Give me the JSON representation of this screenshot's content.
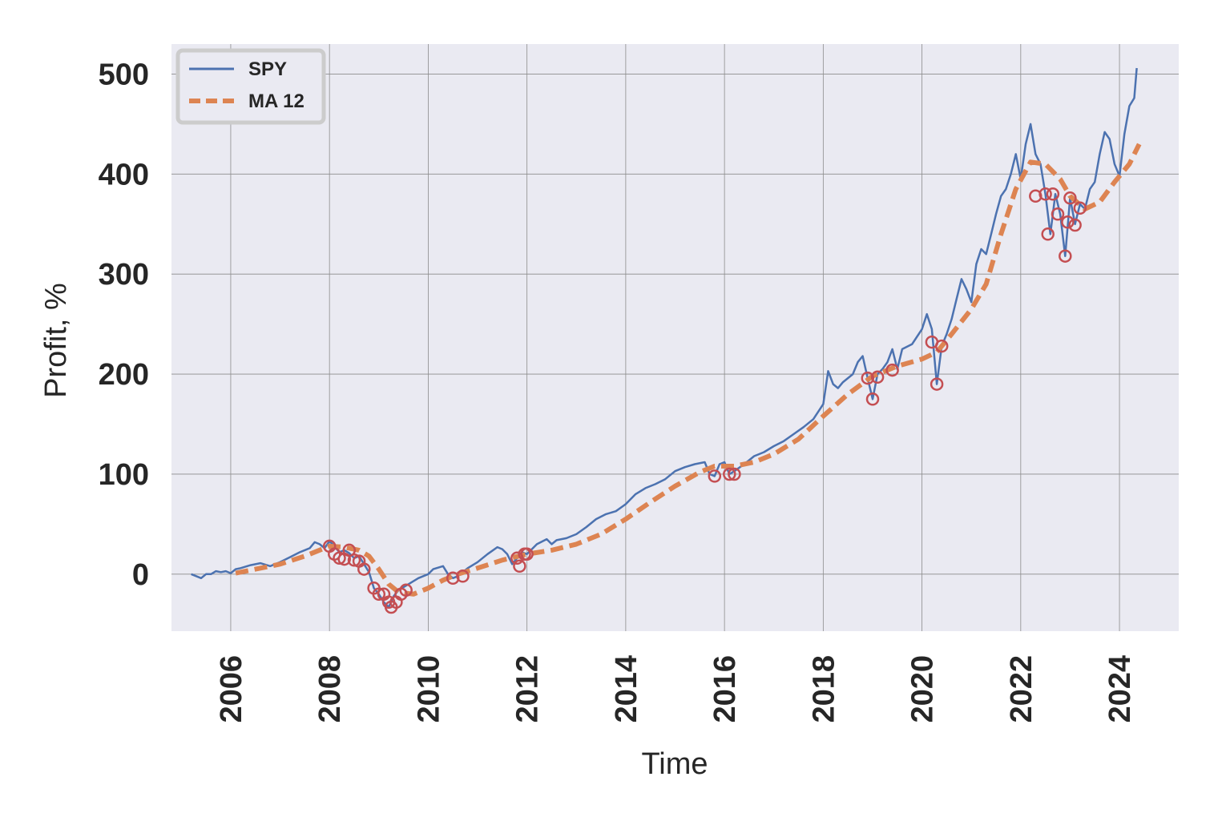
{
  "chart_data": {
    "type": "line",
    "xlabel": "Time",
    "ylabel": "Profit, %",
    "xlim": [
      2004.8,
      2025.2
    ],
    "ylim": [
      -57,
      530
    ],
    "x_ticks": [
      2006,
      2008,
      2010,
      2012,
      2014,
      2016,
      2018,
      2020,
      2022,
      2024
    ],
    "x_tick_labels": [
      "2006",
      "2008",
      "2010",
      "2012",
      "2014",
      "2016",
      "2018",
      "2020",
      "2022",
      "2024"
    ],
    "y_ticks": [
      0,
      100,
      200,
      300,
      400,
      500
    ],
    "y_tick_labels": [
      "0",
      "100",
      "200",
      "300",
      "400",
      "500"
    ],
    "grid": true,
    "legend_position": "top-left",
    "series": [
      {
        "name": "SPY",
        "color": "#4c72b0",
        "style": "solid",
        "points": [
          [
            2005.2,
            0
          ],
          [
            2005.3,
            -2
          ],
          [
            2005.4,
            -4
          ],
          [
            2005.5,
            0
          ],
          [
            2005.6,
            0
          ],
          [
            2005.7,
            3
          ],
          [
            2005.8,
            2
          ],
          [
            2005.9,
            3
          ],
          [
            2006.0,
            1
          ],
          [
            2006.1,
            5
          ],
          [
            2006.2,
            6
          ],
          [
            2006.4,
            9
          ],
          [
            2006.6,
            11
          ],
          [
            2006.8,
            8
          ],
          [
            2007.0,
            12
          ],
          [
            2007.2,
            17
          ],
          [
            2007.4,
            22
          ],
          [
            2007.6,
            26
          ],
          [
            2007.7,
            32
          ],
          [
            2007.8,
            30
          ],
          [
            2007.9,
            26
          ],
          [
            2008.0,
            33
          ],
          [
            2008.1,
            28
          ],
          [
            2008.2,
            22
          ],
          [
            2008.3,
            24
          ],
          [
            2008.4,
            21
          ],
          [
            2008.5,
            16
          ],
          [
            2008.6,
            18
          ],
          [
            2008.7,
            10
          ],
          [
            2008.8,
            2
          ],
          [
            2008.9,
            -14
          ],
          [
            2009.0,
            -20
          ],
          [
            2009.1,
            -28
          ],
          [
            2009.2,
            -33
          ],
          [
            2009.3,
            -22
          ],
          [
            2009.4,
            -16
          ],
          [
            2009.6,
            -10
          ],
          [
            2009.8,
            -4
          ],
          [
            2010.0,
            0
          ],
          [
            2010.1,
            5
          ],
          [
            2010.3,
            8
          ],
          [
            2010.4,
            0
          ],
          [
            2010.5,
            -4
          ],
          [
            2010.6,
            -2
          ],
          [
            2010.8,
            6
          ],
          [
            2011.0,
            12
          ],
          [
            2011.2,
            20
          ],
          [
            2011.4,
            27
          ],
          [
            2011.5,
            25
          ],
          [
            2011.6,
            20
          ],
          [
            2011.7,
            10
          ],
          [
            2011.8,
            16
          ],
          [
            2011.9,
            22
          ],
          [
            2012.0,
            20
          ],
          [
            2012.2,
            30
          ],
          [
            2012.4,
            35
          ],
          [
            2012.5,
            30
          ],
          [
            2012.6,
            34
          ],
          [
            2012.8,
            36
          ],
          [
            2013.0,
            40
          ],
          [
            2013.2,
            47
          ],
          [
            2013.4,
            55
          ],
          [
            2013.6,
            60
          ],
          [
            2013.8,
            63
          ],
          [
            2014.0,
            70
          ],
          [
            2014.2,
            80
          ],
          [
            2014.4,
            86
          ],
          [
            2014.6,
            90
          ],
          [
            2014.8,
            95
          ],
          [
            2015.0,
            103
          ],
          [
            2015.2,
            107
          ],
          [
            2015.4,
            110
          ],
          [
            2015.6,
            112
          ],
          [
            2015.7,
            100
          ],
          [
            2015.8,
            98
          ],
          [
            2015.9,
            110
          ],
          [
            2016.0,
            112
          ],
          [
            2016.1,
            100
          ],
          [
            2016.2,
            103
          ],
          [
            2016.4,
            110
          ],
          [
            2016.6,
            118
          ],
          [
            2016.8,
            122
          ],
          [
            2017.0,
            128
          ],
          [
            2017.2,
            133
          ],
          [
            2017.4,
            140
          ],
          [
            2017.6,
            147
          ],
          [
            2017.8,
            155
          ],
          [
            2018.0,
            170
          ],
          [
            2018.1,
            203
          ],
          [
            2018.2,
            190
          ],
          [
            2018.3,
            186
          ],
          [
            2018.4,
            192
          ],
          [
            2018.6,
            200
          ],
          [
            2018.7,
            212
          ],
          [
            2018.8,
            218
          ],
          [
            2018.9,
            196
          ],
          [
            2019.0,
            175
          ],
          [
            2019.1,
            200
          ],
          [
            2019.2,
            205
          ],
          [
            2019.3,
            212
          ],
          [
            2019.4,
            225
          ],
          [
            2019.5,
            205
          ],
          [
            2019.6,
            225
          ],
          [
            2019.8,
            230
          ],
          [
            2020.0,
            245
          ],
          [
            2020.1,
            260
          ],
          [
            2020.2,
            245
          ],
          [
            2020.3,
            190
          ],
          [
            2020.4,
            228
          ],
          [
            2020.5,
            240
          ],
          [
            2020.6,
            255
          ],
          [
            2020.7,
            275
          ],
          [
            2020.8,
            295
          ],
          [
            2020.9,
            285
          ],
          [
            2021.0,
            272
          ],
          [
            2021.1,
            310
          ],
          [
            2021.2,
            325
          ],
          [
            2021.3,
            320
          ],
          [
            2021.4,
            340
          ],
          [
            2021.5,
            360
          ],
          [
            2021.6,
            378
          ],
          [
            2021.7,
            385
          ],
          [
            2021.8,
            400
          ],
          [
            2021.9,
            420
          ],
          [
            2022.0,
            395
          ],
          [
            2022.1,
            430
          ],
          [
            2022.2,
            450
          ],
          [
            2022.3,
            420
          ],
          [
            2022.4,
            410
          ],
          [
            2022.5,
            380
          ],
          [
            2022.6,
            340
          ],
          [
            2022.7,
            380
          ],
          [
            2022.8,
            360
          ],
          [
            2022.9,
            318
          ],
          [
            2023.0,
            376
          ],
          [
            2023.1,
            350
          ],
          [
            2023.2,
            370
          ],
          [
            2023.3,
            365
          ],
          [
            2023.4,
            385
          ],
          [
            2023.5,
            392
          ],
          [
            2023.6,
            420
          ],
          [
            2023.7,
            442
          ],
          [
            2023.8,
            435
          ],
          [
            2023.9,
            410
          ],
          [
            2024.0,
            398
          ],
          [
            2024.1,
            440
          ],
          [
            2024.2,
            468
          ],
          [
            2024.3,
            476
          ],
          [
            2024.35,
            506
          ]
        ]
      },
      {
        "name": "MA 12",
        "color": "#dd8452",
        "style": "dashed",
        "points": [
          [
            2006.1,
            1
          ],
          [
            2006.5,
            5
          ],
          [
            2007.0,
            10
          ],
          [
            2007.5,
            18
          ],
          [
            2008.0,
            28
          ],
          [
            2008.3,
            27
          ],
          [
            2008.6,
            24
          ],
          [
            2008.8,
            18
          ],
          [
            2009.0,
            5
          ],
          [
            2009.2,
            -10
          ],
          [
            2009.4,
            -18
          ],
          [
            2009.7,
            -20
          ],
          [
            2010.0,
            -14
          ],
          [
            2010.3,
            -6
          ],
          [
            2010.6,
            0
          ],
          [
            2011.0,
            6
          ],
          [
            2011.5,
            14
          ],
          [
            2012.0,
            20
          ],
          [
            2012.5,
            24
          ],
          [
            2013.0,
            30
          ],
          [
            2013.5,
            40
          ],
          [
            2014.0,
            55
          ],
          [
            2014.5,
            72
          ],
          [
            2015.0,
            88
          ],
          [
            2015.5,
            102
          ],
          [
            2015.8,
            108
          ],
          [
            2016.2,
            108
          ],
          [
            2016.6,
            112
          ],
          [
            2017.0,
            120
          ],
          [
            2017.5,
            135
          ],
          [
            2018.0,
            158
          ],
          [
            2018.5,
            180
          ],
          [
            2019.0,
            198
          ],
          [
            2019.5,
            208
          ],
          [
            2020.0,
            215
          ],
          [
            2020.3,
            222
          ],
          [
            2020.6,
            240
          ],
          [
            2021.0,
            265
          ],
          [
            2021.3,
            290
          ],
          [
            2021.6,
            340
          ],
          [
            2021.9,
            385
          ],
          [
            2022.2,
            412
          ],
          [
            2022.5,
            410
          ],
          [
            2022.8,
            395
          ],
          [
            2023.0,
            378
          ],
          [
            2023.3,
            365
          ],
          [
            2023.6,
            372
          ],
          [
            2023.9,
            392
          ],
          [
            2024.2,
            410
          ],
          [
            2024.4,
            430
          ]
        ]
      }
    ],
    "markers": {
      "color": "#c44e52",
      "shape": "open-circle",
      "points": [
        [
          2008.0,
          28
        ],
        [
          2008.1,
          20
        ],
        [
          2008.2,
          16
        ],
        [
          2008.3,
          15
        ],
        [
          2008.4,
          24
        ],
        [
          2008.5,
          14
        ],
        [
          2008.6,
          13
        ],
        [
          2008.7,
          5
        ],
        [
          2008.9,
          -14
        ],
        [
          2009.0,
          -20
        ],
        [
          2009.1,
          -20
        ],
        [
          2009.2,
          -28
        ],
        [
          2009.25,
          -33
        ],
        [
          2009.35,
          -28
        ],
        [
          2009.45,
          -20
        ],
        [
          2009.55,
          -16
        ],
        [
          2010.5,
          -4
        ],
        [
          2010.7,
          -2
        ],
        [
          2011.8,
          16
        ],
        [
          2011.85,
          8
        ],
        [
          2011.95,
          20
        ],
        [
          2012.0,
          20
        ],
        [
          2015.8,
          98
        ],
        [
          2016.1,
          100
        ],
        [
          2016.2,
          100
        ],
        [
          2018.9,
          196
        ],
        [
          2019.0,
          175
        ],
        [
          2019.1,
          197
        ],
        [
          2019.4,
          204
        ],
        [
          2020.2,
          232
        ],
        [
          2020.3,
          190
        ],
        [
          2020.4,
          228
        ],
        [
          2022.3,
          378
        ],
        [
          2022.5,
          380
        ],
        [
          2022.55,
          340
        ],
        [
          2022.65,
          380
        ],
        [
          2022.75,
          360
        ],
        [
          2022.9,
          318
        ],
        [
          2022.95,
          352
        ],
        [
          2023.0,
          376
        ],
        [
          2023.1,
          349
        ],
        [
          2023.2,
          366
        ]
      ]
    }
  }
}
